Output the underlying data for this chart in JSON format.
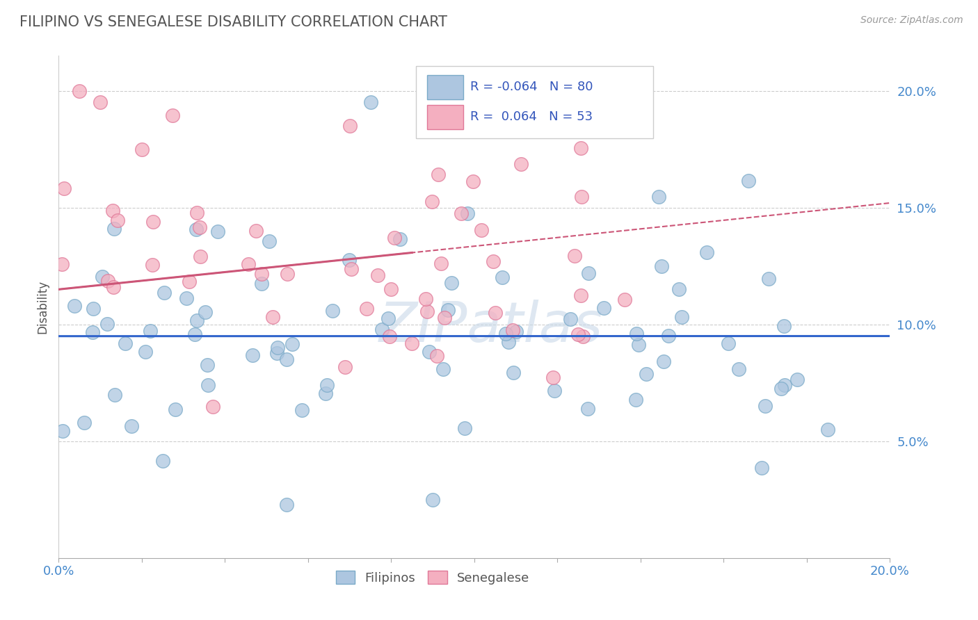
{
  "title": "FILIPINO VS SENEGALESE DISABILITY CORRELATION CHART",
  "source": "Source: ZipAtlas.com",
  "ylabel": "Disability",
  "xlim": [
    0.0,
    0.2
  ],
  "ylim": [
    0.0,
    0.215
  ],
  "yticks": [
    0.05,
    0.1,
    0.15,
    0.2
  ],
  "ytick_labels": [
    "5.0%",
    "10.0%",
    "15.0%",
    "20.0%"
  ],
  "filipino_color": "#adc6e0",
  "filipino_edge": "#7aaac8",
  "senegalese_color": "#f4afc0",
  "senegalese_edge": "#e07898",
  "filipino_R": -0.064,
  "filipino_N": 80,
  "senegalese_R": 0.064,
  "senegalese_N": 53,
  "filipino_trend_color": "#3366cc",
  "senegalese_trend_color": "#cc5577",
  "watermark": "ZIPatlas",
  "watermark_color": "#c8d8e8",
  "background_color": "#ffffff",
  "grid_color": "#cccccc",
  "legend_R_color": "#3355bb",
  "title_color": "#555555",
  "axis_label_color": "#4488cc",
  "seed": 42
}
